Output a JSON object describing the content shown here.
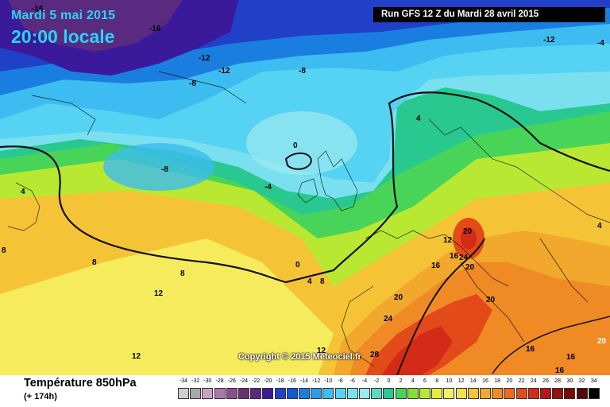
{
  "header": {
    "date": "Mardi 5 mai 2015",
    "time": "20:00 locale",
    "run": "Run GFS 12 Z du Mardi 28 avril 2015"
  },
  "footer": {
    "parameter": "Température 850hPa",
    "lead": "(+ 174h)"
  },
  "copyright": "Copyright © 2015 Meteociel.fr",
  "isotherm_labels": [
    "-16",
    "-16",
    "-12",
    "-12",
    "-8",
    "-8",
    "-12",
    "-4",
    "0",
    "-8",
    "-4",
    "4",
    "4",
    "0",
    "4",
    "8",
    "8",
    "8",
    "4",
    "12",
    "12",
    "16",
    "16",
    "20",
    "24",
    "20",
    "20",
    "24",
    "20",
    "28",
    "16",
    "16",
    "20",
    "16",
    "12",
    "12",
    "8"
  ],
  "legend": {
    "values": [
      "-34",
      "-32",
      "-30",
      "-28",
      "-26",
      "-24",
      "-22",
      "-20",
      "-18",
      "-16",
      "-14",
      "-12",
      "-10",
      "-8",
      "-6",
      "-4",
      "-2",
      "0",
      "2",
      "4",
      "6",
      "8",
      "10",
      "12",
      "14",
      "16",
      "18",
      "20",
      "22",
      "24",
      "26",
      "28",
      "30",
      "32",
      "34"
    ],
    "colors": [
      "#cfcfcf",
      "#a8a8a8",
      "#c7a2c7",
      "#a87aa8",
      "#8b4f8b",
      "#6a2f6a",
      "#5a2a80",
      "#3a1a9a",
      "#2040c8",
      "#0b5ad6",
      "#1a7ee0",
      "#2a9ce8",
      "#3cbcf0",
      "#56d2f2",
      "#7ae0ef",
      "#9eeaf0",
      "#5ad8c0",
      "#28c890",
      "#48d458",
      "#88de36",
      "#b8e832",
      "#e4ef3c",
      "#f6f060",
      "#f6e04c",
      "#f4c436",
      "#f2a82c",
      "#ef8a24",
      "#ea6a1e",
      "#e24a1a",
      "#d42a18",
      "#b81616",
      "#9a1010",
      "#7a0a0a",
      "#520606",
      "#000000"
    ]
  }
}
